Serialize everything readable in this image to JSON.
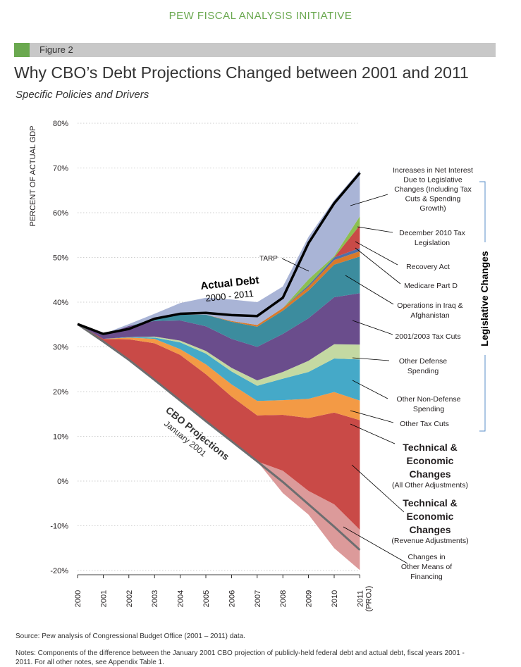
{
  "header": "PEW FISCAL ANALYSIS INITIATIVE",
  "figure_label": "Figure 2",
  "title": "Why CBO’s Debt Projections Changed between 2001 and 2011",
  "subtitle": "Specific Policies and Drivers",
  "source": "Source: Pew analysis of Congressional Budget Office (2001 – 2011) data.",
  "notes": [
    "Notes: Components of the difference between the January 2001 CBO projection of publicly-held federal debt and actual debt, fiscal years 2001 -",
    "2011. For all other notes, see Appendix Table 1."
  ],
  "colors": {
    "accent": "#6aa84f",
    "revenue_adjustments": "#dc9a9a",
    "all_other_adjustments": "#c94a47",
    "other_tax_cuts": "#f39a45",
    "other_non_defense": "#45a9c8",
    "other_defense": "#c4d9a2",
    "tax_cuts_2001_2003": "#6a4d8c",
    "iraq_afghanistan": "#3c8c9e",
    "medicare_part_d": "#d97a2b",
    "recovery_act": "#4f6fa8",
    "dec_2010_tax": "#c94a47",
    "net_interest": "#a9b4d6",
    "tarp": "#8cbf50",
    "actual_debt": "#000000",
    "cbo_projection": "#6d6e70"
  },
  "chart_data": {
    "type": "area",
    "ylabel": "PERCENT OF ACTUAL GDP",
    "ylim": [
      -20,
      80
    ],
    "yticks": [
      -20,
      -10,
      0,
      10,
      20,
      30,
      40,
      50,
      60,
      70,
      80
    ],
    "ytick_labels": [
      "-20%",
      "-10%",
      "0%",
      "10%",
      "20%",
      "30%",
      "40%",
      "50%",
      "60%",
      "70%",
      "80%"
    ],
    "x": [
      "2000",
      "2001",
      "2002",
      "2003",
      "2004",
      "2005",
      "2006",
      "2007",
      "2008",
      "2009",
      "2010",
      "2011"
    ],
    "xtick_labels": [
      "2000",
      "2001",
      "2002",
      "2003",
      "2004",
      "2005",
      "2006",
      "2007",
      "2008",
      "2009",
      "2010",
      "2011 (PROJ)"
    ],
    "grid": true,
    "lines": [
      {
        "name": "CBO Projections",
        "sub": "January 2001",
        "values": [
          35.1,
          31.2,
          27.1,
          22.6,
          18.0,
          13.4,
          8.9,
          4.4,
          -0.2,
          -5.2,
          -10.2,
          -15.4
        ]
      },
      {
        "name": "Actual Debt",
        "sub": "2000 - 2011",
        "values": [
          35.1,
          32.9,
          34.0,
          36.3,
          37.4,
          37.6,
          37.1,
          36.9,
          41.0,
          53.2,
          62.1,
          68.9
        ]
      }
    ],
    "series": [
      {
        "name": "Changes in Other Means of Financing",
        "values": [
          0,
          0,
          0,
          0,
          0,
          0,
          0,
          0,
          -2.5,
          -2.3,
          -4.8,
          -4.5
        ]
      },
      {
        "name": "Technical & Economic Changes (Revenue Adjustments)",
        "values": [
          0,
          0,
          0,
          0,
          0,
          0,
          0,
          0,
          2.5,
          3.0,
          5.0,
          4.5
        ]
      },
      {
        "name": "Technical & Economic Changes (All Other Adjustments)",
        "values": [
          0,
          0.6,
          4.6,
          8.2,
          10.2,
          10.5,
          10.0,
          10.3,
          12.5,
          16.3,
          20.5,
          24.5
        ]
      },
      {
        "name": "Other Tax Cuts",
        "values": [
          0,
          0,
          0.4,
          1.0,
          1.3,
          2.2,
          2.7,
          3.2,
          3.3,
          4.3,
          4.6,
          4.4
        ]
      },
      {
        "name": "Other Non-Defense Spending",
        "values": [
          0,
          0,
          0.1,
          0.3,
          1.5,
          2.4,
          2.9,
          3.4,
          4.8,
          6.0,
          7.5,
          9.2
        ]
      },
      {
        "name": "Other Defense Spending",
        "values": [
          0,
          0,
          0,
          0.2,
          0.4,
          0.6,
          0.8,
          1.2,
          1.5,
          2.5,
          3.2,
          3.3
        ]
      },
      {
        "name": "2001/2003 Tax Cuts",
        "values": [
          0,
          0.8,
          2.5,
          3.5,
          4.5,
          5.5,
          6.5,
          7.5,
          8.5,
          9.5,
          10.5,
          11.5
        ]
      },
      {
        "name": "Operations in Iraq & Afghanistan",
        "values": [
          0,
          0,
          0,
          0.3,
          1.3,
          2.6,
          3.8,
          4.5,
          5.2,
          6.2,
          7.3,
          8.2
        ]
      },
      {
        "name": "Medicare Part D",
        "values": [
          0,
          0,
          0,
          0,
          0,
          0,
          0.2,
          0.4,
          0.6,
          0.8,
          1.0,
          1.2
        ]
      },
      {
        "name": "Recovery Act",
        "values": [
          0,
          0,
          0,
          0,
          0,
          0,
          0,
          0,
          0,
          0.4,
          0.6,
          0.7
        ]
      },
      {
        "name": "December 2010 Tax Legislation",
        "values": [
          0,
          0,
          0,
          0,
          0,
          0,
          0,
          0,
          0,
          0,
          0,
          5.1
        ]
      },
      {
        "name": "TARP",
        "values": [
          0,
          0,
          0,
          0,
          0,
          0,
          0,
          0,
          0,
          1.3,
          0.3,
          2.0
        ]
      },
      {
        "name": "Increases in Net Interest Due to Legislative Changes (Including Tax Cuts & Spending Growth)",
        "values": [
          0,
          0.3,
          0.4,
          1.3,
          2.6,
          3.8,
          4.8,
          5.1,
          4.8,
          9.5,
          12.5,
          10.3
        ]
      }
    ],
    "series_labels": {
      "net_interest": [
        "Increases in Net Interest",
        "Due to Legislative",
        "Changes (Including Tax",
        "Cuts & Spending",
        "Growth)"
      ],
      "dec_2010": [
        "December 2010 Tax",
        "Legislation"
      ],
      "recovery": [
        "Recovery Act"
      ],
      "medicare": [
        "Medicare Part D"
      ],
      "iraq": [
        "Operations in Iraq &",
        "Afghanistan"
      ],
      "taxcuts": [
        "2001/2003 Tax Cuts"
      ],
      "defense": [
        "Other Defense",
        "Spending"
      ],
      "nondefense": [
        "Other Non-Defense",
        "Spending"
      ],
      "othertax": [
        "Other Tax Cuts"
      ],
      "tech_other": [
        "Technical &",
        "Economic",
        "Changes"
      ],
      "tech_other_sub": "(All Other Adjustments)",
      "tech_rev": [
        "Technical &",
        "Economic",
        "Changes"
      ],
      "tech_rev_sub": "(Revenue Adjustments)",
      "financing": [
        "Changes in",
        "Other Means of",
        "Financing"
      ]
    },
    "annotations": {
      "tarp": "TARP",
      "legislative": "Legislative Changes"
    }
  }
}
